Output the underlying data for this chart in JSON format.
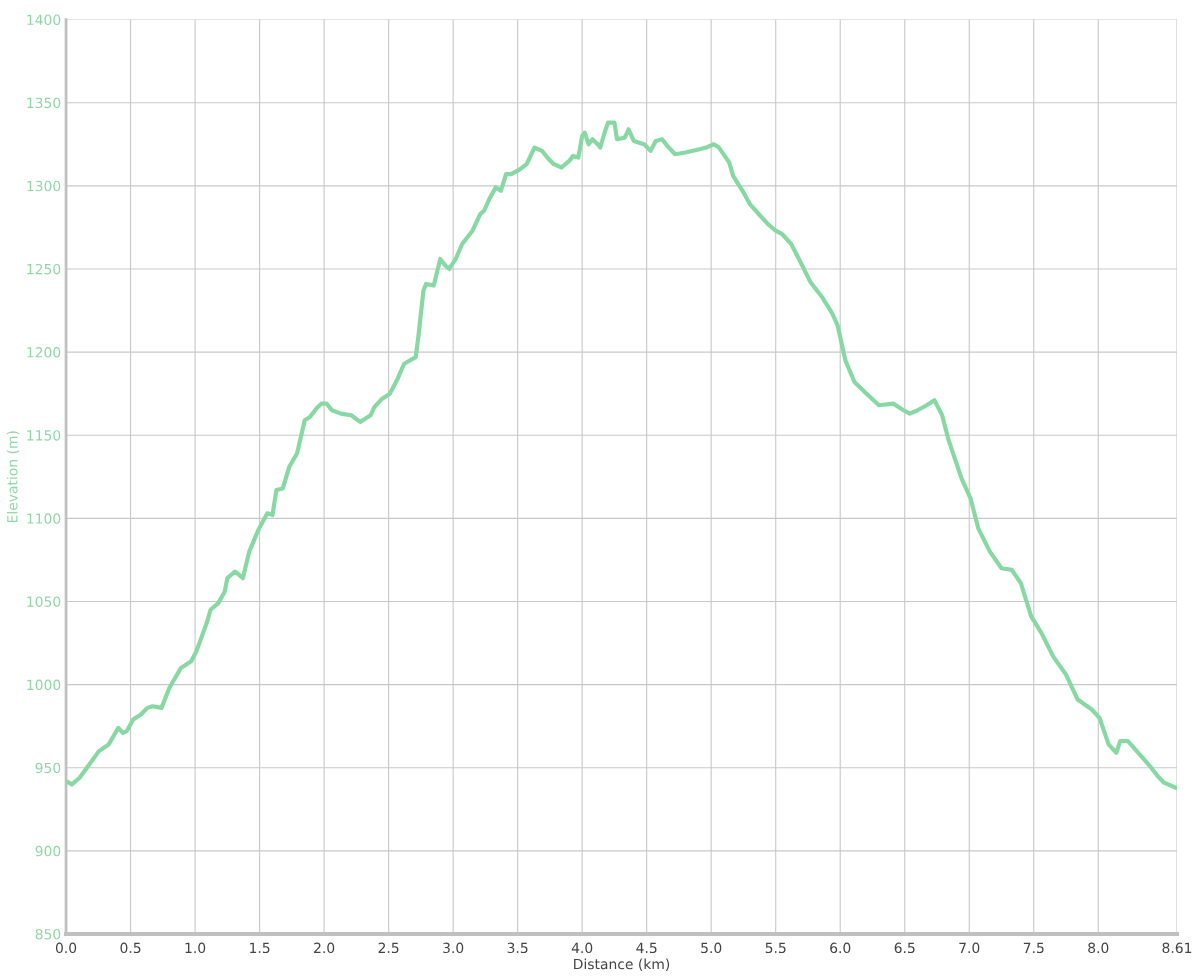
{
  "chart_data": {
    "type": "line",
    "xlabel": "Distance (km)",
    "ylabel": "Elevation (m)",
    "xlim": [
      0,
      8.61
    ],
    "ylim": [
      850,
      1400
    ],
    "xticks": [
      {
        "value": 0,
        "label": "0.0"
      },
      0.5,
      {
        "value": 1,
        "label": "1.0"
      },
      1.5,
      {
        "value": 2,
        "label": "2.0"
      },
      2.5,
      {
        "value": 3,
        "label": "3.0"
      },
      3.5,
      {
        "value": 4,
        "label": "4.0"
      },
      4.5,
      {
        "value": 5,
        "label": "5.0"
      },
      5.5,
      {
        "value": 6,
        "label": "6.0"
      },
      6.5,
      {
        "value": 7,
        "label": "7.0"
      },
      7.5,
      {
        "value": 8,
        "label": "8.0"
      },
      8.61
    ],
    "yticks": [
      850,
      900,
      950,
      1000,
      1050,
      1100,
      1150,
      1200,
      1250,
      1300,
      1350,
      1400
    ],
    "grid": true,
    "marker": "none",
    "line_style": "solid",
    "series": [
      {
        "color": "#88d8a3",
        "x": [
          0,
          0.045,
          0.105,
          0.18,
          0.255,
          0.33,
          0.405,
          0.44,
          0.47,
          0.52,
          0.58,
          0.63,
          0.67,
          0.74,
          0.8,
          0.89,
          0.97,
          1.01,
          1.09,
          1.12,
          1.18,
          1.23,
          1.25,
          1.31,
          1.37,
          1.42,
          1.49,
          1.56,
          1.6,
          1.63,
          1.68,
          1.73,
          1.79,
          1.85,
          1.89,
          1.94,
          1.98,
          2.02,
          2.06,
          2.13,
          2.21,
          2.28,
          2.36,
          2.39,
          2.45,
          2.51,
          2.57,
          2.62,
          2.71,
          2.73,
          2.77,
          2.79,
          2.85,
          2.9,
          2.94,
          2.97,
          3.02,
          3.07,
          3.15,
          3.21,
          3.24,
          3.28,
          3.33,
          3.37,
          3.41,
          3.45,
          3.52,
          3.57,
          3.6,
          3.63,
          3.69,
          3.73,
          3.78,
          3.84,
          3.9,
          3.93,
          3.97,
          4.0,
          4.02,
          4.05,
          4.08,
          4.12,
          4.14,
          4.17,
          4.2,
          4.25,
          4.27,
          4.33,
          4.36,
          4.4,
          4.48,
          4.53,
          4.57,
          4.62,
          4.66,
          4.72,
          4.8,
          4.91,
          4.96,
          5.02,
          5.06,
          5.14,
          5.17,
          5.25,
          5.3,
          5.38,
          5.44,
          5.5,
          5.55,
          5.62,
          5.68,
          5.77,
          5.86,
          5.94,
          5.98,
          6.04,
          6.11,
          6.19,
          6.3,
          6.41,
          6.49,
          6.54,
          6.6,
          6.67,
          6.73,
          6.79,
          6.84,
          6.94,
          7.01,
          7.07,
          7.16,
          7.25,
          7.33,
          7.4,
          7.48,
          7.56,
          7.65,
          7.75,
          7.84,
          7.95,
          8.01,
          8.08,
          8.14,
          8.17,
          8.23,
          8.31,
          8.4,
          8.46,
          8.51,
          8.6
        ],
        "values": [
          942,
          940,
          944,
          952,
          960,
          964,
          974,
          971,
          972,
          979,
          982,
          986,
          987,
          986,
          998,
          1010,
          1014,
          1020,
          1037,
          1045,
          1049,
          1056,
          1064,
          1068,
          1064,
          1080,
          1093,
          1103,
          1102,
          1117,
          1118,
          1131,
          1139,
          1159,
          1161,
          1166,
          1169,
          1169,
          1165,
          1163,
          1162,
          1158,
          1162,
          1167,
          1172,
          1175,
          1184,
          1193,
          1197,
          1209,
          1237,
          1241,
          1240,
          1256,
          1252,
          1250,
          1256,
          1265,
          1273,
          1283,
          1285,
          1292,
          1299,
          1297,
          1307,
          1307,
          1310,
          1313,
          1318,
          1323,
          1321,
          1317,
          1313,
          1311,
          1315,
          1318,
          1317,
          1330,
          1332,
          1325,
          1328,
          1325,
          1323,
          1331,
          1338,
          1338,
          1328,
          1329,
          1334,
          1327,
          1325,
          1321,
          1327,
          1328,
          1324,
          1319,
          1320,
          1322,
          1323,
          1325,
          1323,
          1314,
          1306,
          1296,
          1289,
          1282,
          1277,
          1273,
          1271,
          1265,
          1256,
          1242,
          1233,
          1223,
          1216,
          1195,
          1182,
          1176,
          1168,
          1169,
          1165,
          1163,
          1165,
          1168,
          1171,
          1162,
          1147,
          1124,
          1112,
          1094,
          1080,
          1070,
          1069,
          1061,
          1041,
          1031,
          1017,
          1006,
          991,
          985,
          980,
          964,
          959,
          966,
          966,
          959,
          951,
          945,
          941,
          938
        ]
      }
    ]
  }
}
